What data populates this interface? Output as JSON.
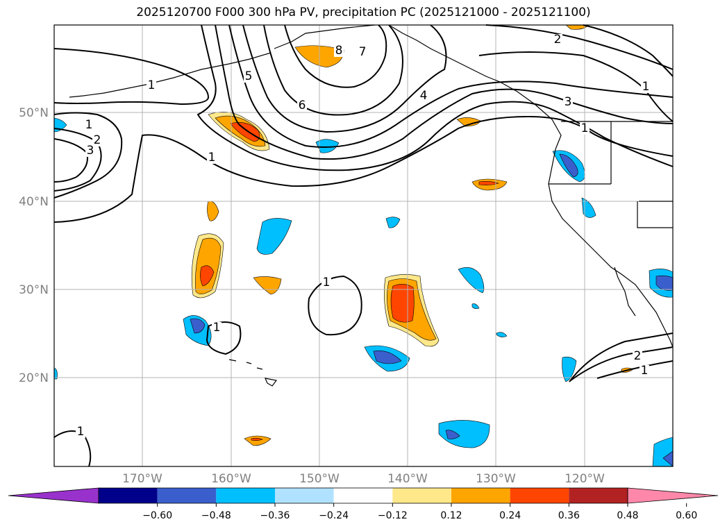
{
  "title": "2025120700 F000 300 hPa PV, precipitation PC (2025121000 - 2025121100)",
  "lat_labels": [
    "50°N",
    "40°N",
    "30°N",
    "20°N"
  ],
  "lon_labels": [
    "170°W",
    "160°W",
    "150°W",
    "140°W",
    "130°W",
    "120°W"
  ],
  "pv_contour_labels": [
    "1",
    "1",
    "2",
    "3",
    "1",
    "5",
    "6",
    "7",
    "8",
    "4",
    "3",
    "2",
    "1",
    "2",
    "1",
    "1",
    "1",
    "1",
    "1"
  ],
  "colorbar": {
    "ticks": [
      "−0.60",
      "−0.48",
      "−0.36",
      "−0.24",
      "−0.12",
      "0.12",
      "0.24",
      "0.36",
      "0.48",
      "0.60"
    ],
    "colors": [
      "#9932cc",
      "#00008b",
      "#3a5fcd",
      "#00bfff",
      "#b0e2ff",
      "#ffffff",
      "#ffe88a",
      "#ffa500",
      "#ff4500",
      "#b22222",
      "#ff88aa"
    ]
  }
}
